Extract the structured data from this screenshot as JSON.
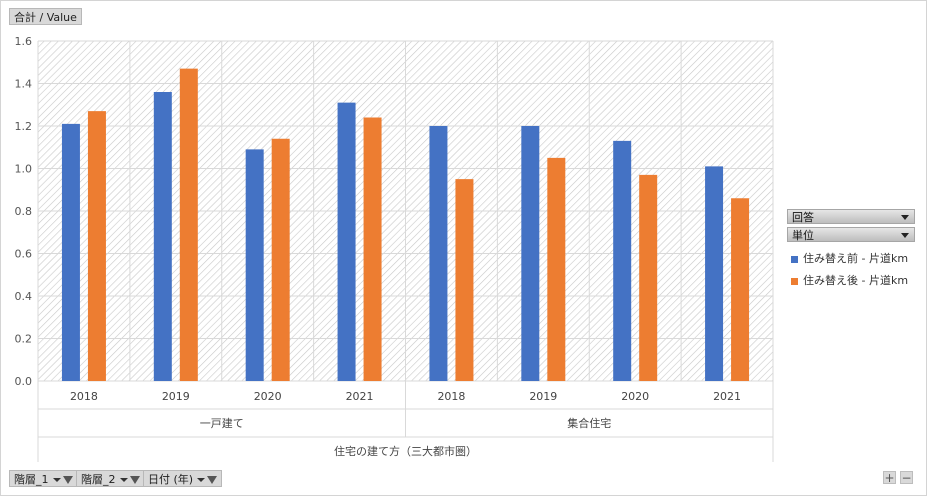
{
  "value_field": "合計 / Value",
  "chart_data": {
    "type": "bar",
    "groups": [
      {
        "label": "一戸建て",
        "categories": [
          "2018",
          "2019",
          "2020",
          "2021"
        ]
      },
      {
        "label": "集合住宅",
        "categories": [
          "2018",
          "2019",
          "2020",
          "2021"
        ]
      }
    ],
    "xlabel": "住宅の建て方（三大都市圏）",
    "ylim": [
      0,
      1.6
    ],
    "yticks": [
      "0.0",
      "0.2",
      "0.4",
      "0.6",
      "0.8",
      "1.0",
      "1.2",
      "1.4",
      "1.6"
    ],
    "series": [
      {
        "name": "住み替え前 - 片道km",
        "color": "#4472c4",
        "values": [
          1.21,
          1.36,
          1.09,
          1.31,
          1.2,
          1.2,
          1.13,
          1.01
        ]
      },
      {
        "name": "住み替え後 - 片道km",
        "color": "#ed7d31",
        "values": [
          1.27,
          1.47,
          1.14,
          1.24,
          0.95,
          1.05,
          0.97,
          0.86
        ]
      }
    ],
    "grid": true,
    "legend": "right"
  },
  "legend_fields": [
    "回答",
    "単位"
  ],
  "axis_fields": [
    {
      "label": "階層_1"
    },
    {
      "label": "階層_2"
    },
    {
      "label": "日付 (年)"
    }
  ],
  "zoom": {
    "plus": "+",
    "minus": "−"
  }
}
